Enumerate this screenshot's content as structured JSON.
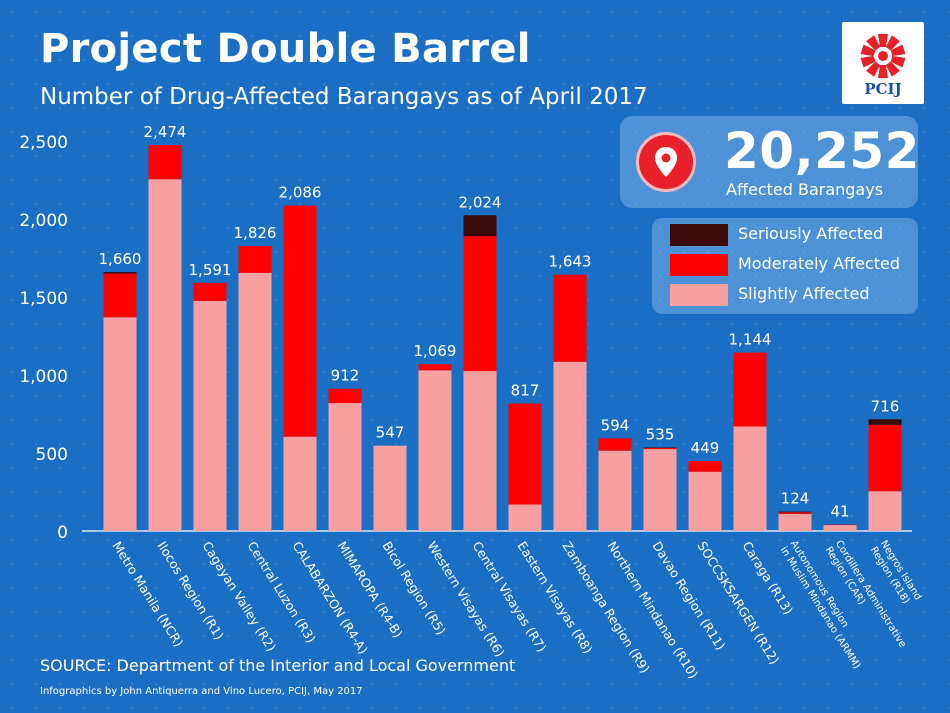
{
  "header": {
    "title": "Project Double Barrel",
    "subtitle": "Number of Drug-Affected Barangays as of April 2017"
  },
  "logo": {
    "text": "PCIJ",
    "icon": "pcij-logo-icon"
  },
  "total": {
    "value": "20,252",
    "label": "Affected Barangays",
    "icon": "location-pin-icon"
  },
  "footer": {
    "source": "SOURCE: Department of the Interior and Local Government",
    "credits": "Infographics by John Antiquerra and Vino Lucero, PCIJ, May 2017"
  },
  "colors": {
    "background": "#1a6fc4",
    "seriously": "#3a0a0a",
    "moderately": "#ff0000",
    "slightly": "#f9a0a0"
  },
  "chart_data": {
    "type": "bar",
    "stacked": true,
    "title": "Project Double Barrel",
    "subtitle": "Number of Drug-Affected Barangays as of April 2017",
    "xlabel": "",
    "ylabel": "",
    "ylim": [
      0,
      2500
    ],
    "yticks": [
      0,
      500,
      1000,
      1500,
      2000,
      2500
    ],
    "ytick_labels": [
      "0",
      "500",
      "1,000",
      "1,500",
      "2,000",
      "2,500"
    ],
    "grid": false,
    "legend_position": "top-right",
    "categories": [
      "Metro Manila (NCR)",
      "Ilocos Region (R1)",
      "Cagayan Valley (R2)",
      "Central Luzon (R3)",
      "CALABARZON (R4-A)",
      "MIMAROPA (R4-B)",
      "Bicol Region (R5)",
      "Western Visayas (R6)",
      "Central Visayas (R7)",
      "Eastern Visayas (R8)",
      "Zamboanga Region (R9)",
      "Northern Mindanao (R10)",
      "Davao Region (R11)",
      "SOCCSKSARGEN (R12)",
      "Caraga (R13)",
      "Autonomous Region in Muslim Mindanao (ARMM)",
      "Cordillera Administrative Region (CAR)",
      "Negros Island Region (R18)"
    ],
    "category_lines": [
      [
        "Metro Manila (NCR)"
      ],
      [
        "Ilocos Region (R1)"
      ],
      [
        "Cagayan Valley (R2)"
      ],
      [
        "Central Luzon (R3)"
      ],
      [
        "CALABARZON (R4-A)"
      ],
      [
        "MIMAROPA (R4-B)"
      ],
      [
        "Bicol Region (R5)"
      ],
      [
        "Western Visayas (R6)"
      ],
      [
        "Central Visayas (R7)"
      ],
      [
        "Eastern Visayas (R8)"
      ],
      [
        "Zamboanga Region (R9)"
      ],
      [
        "Northern Mindanao (R10)"
      ],
      [
        "Davao Region (R11)"
      ],
      [
        "SOCCSKSARGEN (R12)"
      ],
      [
        "Caraga (R13)"
      ],
      [
        "Autonomous Region",
        "in Muslim Mindanao (ARMM)"
      ],
      [
        "Cordillera Administrative",
        "Region (CAR)"
      ],
      [
        "Negros Island",
        "Region (R18)"
      ]
    ],
    "totals": [
      1660,
      2474,
      1591,
      1826,
      2086,
      912,
      547,
      1069,
      2024,
      817,
      1643,
      594,
      535,
      449,
      1144,
      124,
      41,
      716
    ],
    "total_labels": [
      "1,660",
      "2,474",
      "1,591",
      "1,826",
      "2,086",
      "912",
      "547",
      "1,069",
      "2,024",
      "817",
      "1,643",
      "594",
      "535",
      "449",
      "1,144",
      "124",
      "41",
      "716"
    ],
    "series": [
      {
        "name": "Slightly Affected",
        "color": "#f9a0a0",
        "values": [
          1370,
          2255,
          1475,
          1655,
          605,
          820,
          547,
          1030,
          1025,
          170,
          1085,
          515,
          525,
          380,
          670,
          110,
          38,
          255
        ]
      },
      {
        "name": "Moderately Affected",
        "color": "#ff0000",
        "values": [
          280,
          219,
          116,
          171,
          1481,
          92,
          0,
          39,
          865,
          647,
          558,
          79,
          7,
          69,
          474,
          10,
          3,
          426
        ]
      },
      {
        "name": "Seriously Affected",
        "color": "#3a0a0a",
        "values": [
          10,
          0,
          0,
          0,
          0,
          0,
          0,
          0,
          134,
          0,
          0,
          0,
          3,
          0,
          0,
          4,
          0,
          35
        ]
      }
    ]
  }
}
